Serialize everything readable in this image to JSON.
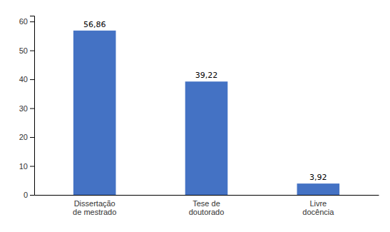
{
  "chart_data": {
    "type": "bar",
    "categories": [
      "Dissertação\nde mestrado",
      "Tese de\ndoutorado",
      "Livre\ndocência"
    ],
    "values": [
      56.86,
      39.22,
      3.92
    ],
    "value_labels": [
      "56,86",
      "39,22",
      "3,92"
    ],
    "data_labels": true,
    "color": "#4472C4",
    "ylim": [
      0,
      62
    ],
    "yticks": [
      0,
      10,
      20,
      30,
      40,
      50,
      60
    ],
    "grid": false
  }
}
